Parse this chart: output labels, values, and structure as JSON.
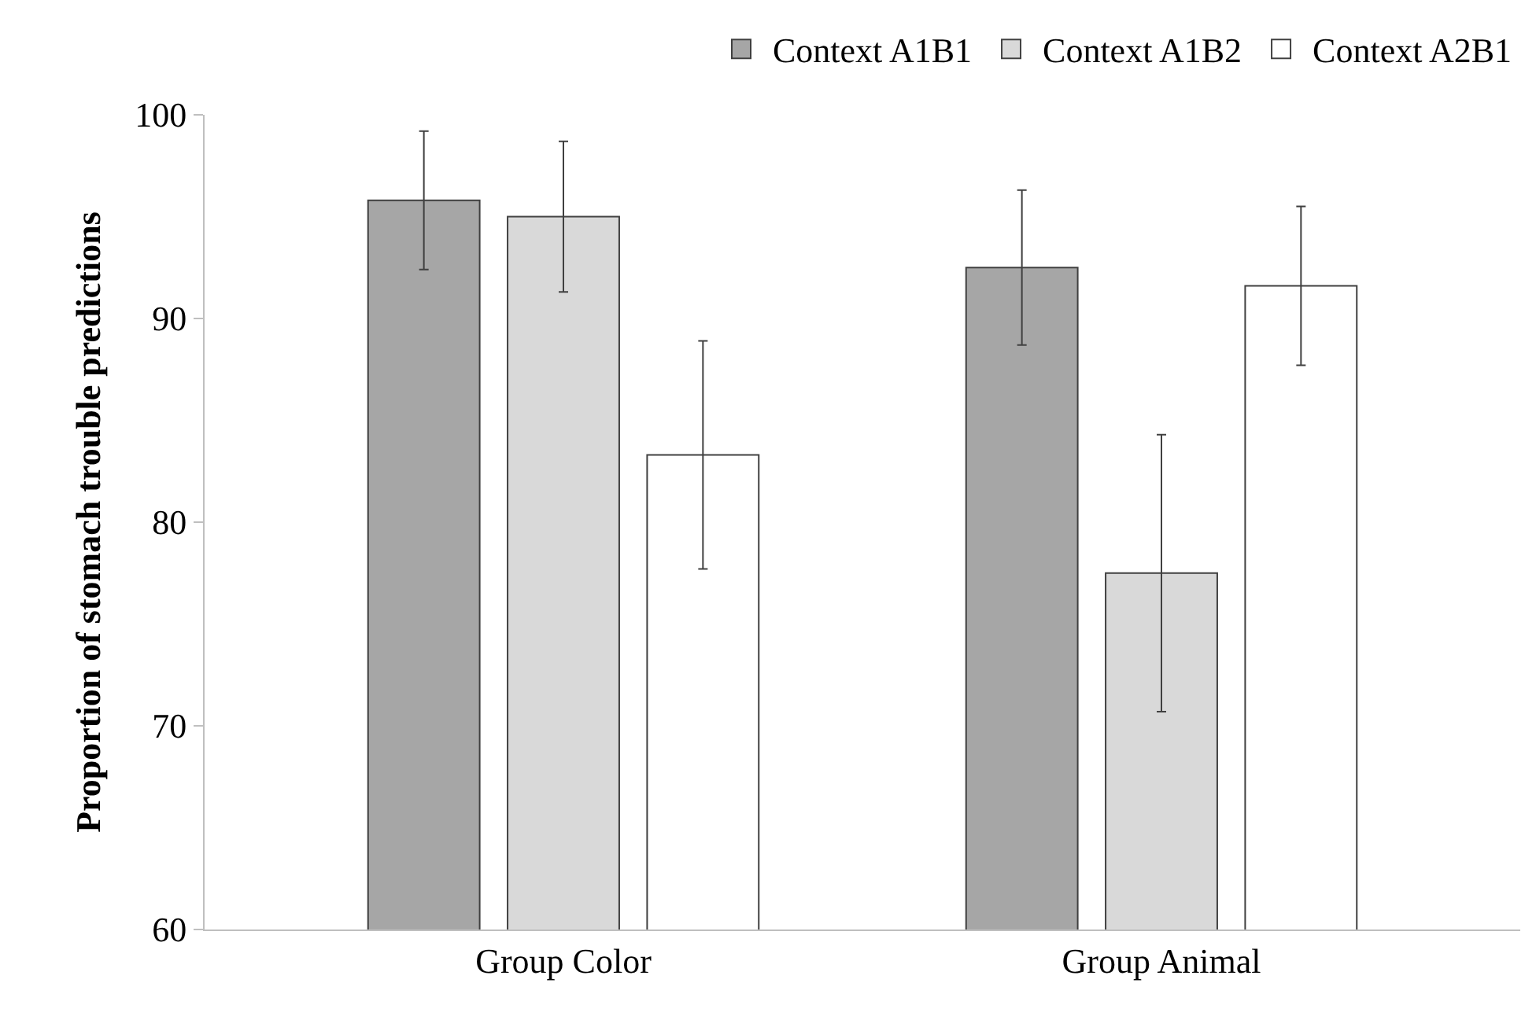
{
  "chart_data": {
    "type": "bar",
    "ylabel": "Proportion of stomach trouble predictions",
    "categories": [
      "Group Color",
      "Group Animal"
    ],
    "series": [
      {
        "name": "Context A1B1",
        "color": "#a6a6a6",
        "values": [
          95.8,
          92.5
        ],
        "errors": [
          3.4,
          3.8
        ]
      },
      {
        "name": "Context A1B2",
        "color": "#d9d9d9",
        "values": [
          95.0,
          77.5
        ],
        "errors": [
          3.7,
          6.8
        ]
      },
      {
        "name": "Context A2B1",
        "color": "#ffffff",
        "values": [
          83.3,
          91.6
        ],
        "errors": [
          5.6,
          3.9
        ]
      }
    ],
    "ylim": [
      60,
      100
    ],
    "yticks": [
      60,
      70,
      80,
      90,
      100
    ],
    "legend": "top right"
  }
}
